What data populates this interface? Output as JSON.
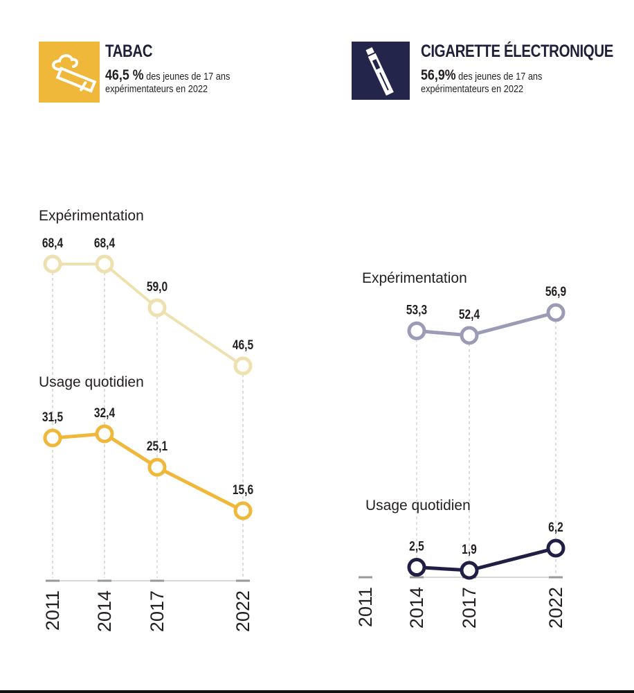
{
  "panels": {
    "tabac": {
      "title": "TABAC",
      "headline_value": "46,5 %",
      "headline_text": "des jeunes de 17 ans",
      "headline_text2": "expérimentateurs en 2022",
      "icon": "cigarette-icon",
      "color_box": "#f0b83a"
    },
    "ecig": {
      "title": "CIGARETTE ÉLECTRONIQUE",
      "headline_value": "56,9%",
      "headline_text": "des jeunes de 17 ans",
      "headline_text2": "expérimentateurs en 2022",
      "icon": "e-cigarette-icon",
      "color_box": "#24254a"
    }
  },
  "chart_data": [
    {
      "type": "line",
      "title": "TABAC",
      "x": [
        "2011",
        "2014",
        "2017",
        "2022"
      ],
      "series": [
        {
          "name": "Expérimentation",
          "values": [
            68.4,
            68.4,
            59.0,
            46.5
          ],
          "labels": [
            "68,4",
            "68,4",
            "59,0",
            "46,5"
          ],
          "color": "#efe0b0"
        },
        {
          "name": "Usage quotidien",
          "values": [
            31.5,
            32.4,
            25.1,
            15.6
          ],
          "labels": [
            "31,5",
            "32,4",
            "25,1",
            "15,6"
          ],
          "color": "#f0b83a"
        }
      ],
      "grid": false
    },
    {
      "type": "line",
      "title": "CIGARETTE ÉLECTRONIQUE",
      "x": [
        "2011",
        "2014",
        "2017",
        "2022"
      ],
      "series": [
        {
          "name": "Expérimentation",
          "values": [
            null,
            53.3,
            52.4,
            56.9
          ],
          "labels": [
            "",
            "53,3",
            "52,4",
            "56,9"
          ],
          "color": "#9a9bb4"
        },
        {
          "name": "Usage quotidien",
          "values": [
            null,
            2.5,
            1.9,
            6.2
          ],
          "labels": [
            "",
            "2,5",
            "1,9",
            "6,2"
          ],
          "color": "#1f1f45"
        }
      ],
      "grid": false
    }
  ]
}
